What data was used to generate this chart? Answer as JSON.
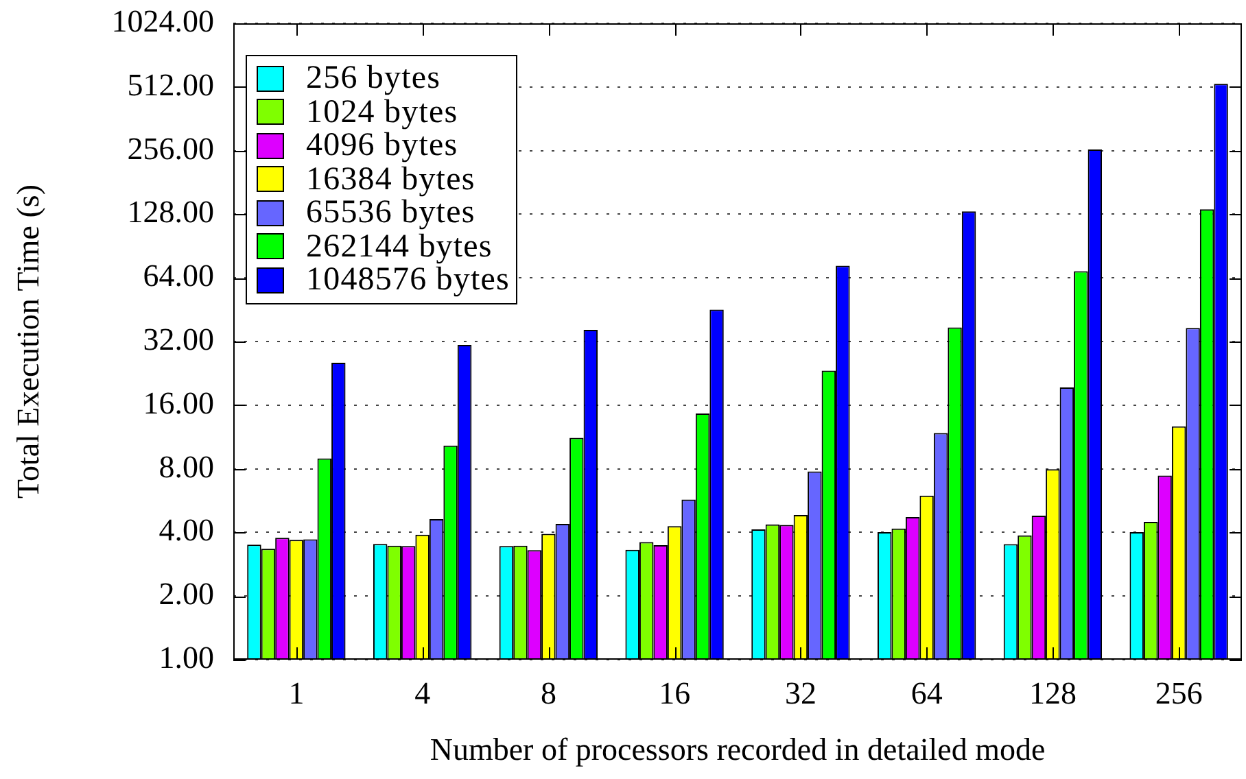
{
  "chart_data": {
    "type": "bar",
    "xlabel": "Number of processors recorded in detailed mode",
    "ylabel": "Total Execution Time (s)",
    "categories": [
      "1",
      "4",
      "8",
      "16",
      "32",
      "64",
      "128",
      "256"
    ],
    "series": [
      {
        "name": "256 bytes",
        "color": "#00ffff",
        "values": [
          3.5,
          3.53,
          3.45,
          3.31,
          4.13,
          4.01,
          3.52,
          4.01
        ]
      },
      {
        "name": "1024 bytes",
        "color": "#7fff00",
        "values": [
          3.35,
          3.46,
          3.46,
          3.6,
          4.36,
          4.17,
          3.87,
          4.49
        ]
      },
      {
        "name": "4096 bytes",
        "color": "#dd00ff",
        "values": [
          3.77,
          3.45,
          3.3,
          3.48,
          4.34,
          4.73,
          4.8,
          7.43
        ]
      },
      {
        "name": "16384 bytes",
        "color": "#ffff00",
        "values": [
          3.69,
          3.9,
          3.94,
          4.28,
          4.84,
          5.97,
          7.96,
          12.7
        ]
      },
      {
        "name": "65536 bytes",
        "color": "#6666ff",
        "values": [
          3.71,
          4.62,
          4.39,
          5.72,
          7.77,
          11.8,
          19.4,
          37.1
        ]
      },
      {
        "name": "262144 bytes",
        "color": "#00ff00",
        "values": [
          8.95,
          10.3,
          11.2,
          14.6,
          23.3,
          37.3,
          68.8,
          135
        ]
      },
      {
        "name": "1048576 bytes",
        "color": "#0000ff",
        "values": [
          25.4,
          30.8,
          36.3,
          45.3,
          73,
          132,
          259,
          530
        ]
      }
    ],
    "log": true,
    "ylim": [
      1,
      1024
    ],
    "yticks": [
      {
        "value": 1,
        "label": "1.00"
      },
      {
        "value": 2,
        "label": "2.00"
      },
      {
        "value": 4,
        "label": "4.00"
      },
      {
        "value": 8,
        "label": "8.00"
      },
      {
        "value": 16,
        "label": "16.00"
      },
      {
        "value": 32,
        "label": "32.00"
      },
      {
        "value": 64,
        "label": "64.00"
      },
      {
        "value": 128,
        "label": "128.00"
      },
      {
        "value": 256,
        "label": "256.00"
      },
      {
        "value": 512,
        "label": "512.00"
      },
      {
        "value": 1024,
        "label": "1024.00"
      }
    ],
    "grid": "y",
    "legend": "top left"
  }
}
